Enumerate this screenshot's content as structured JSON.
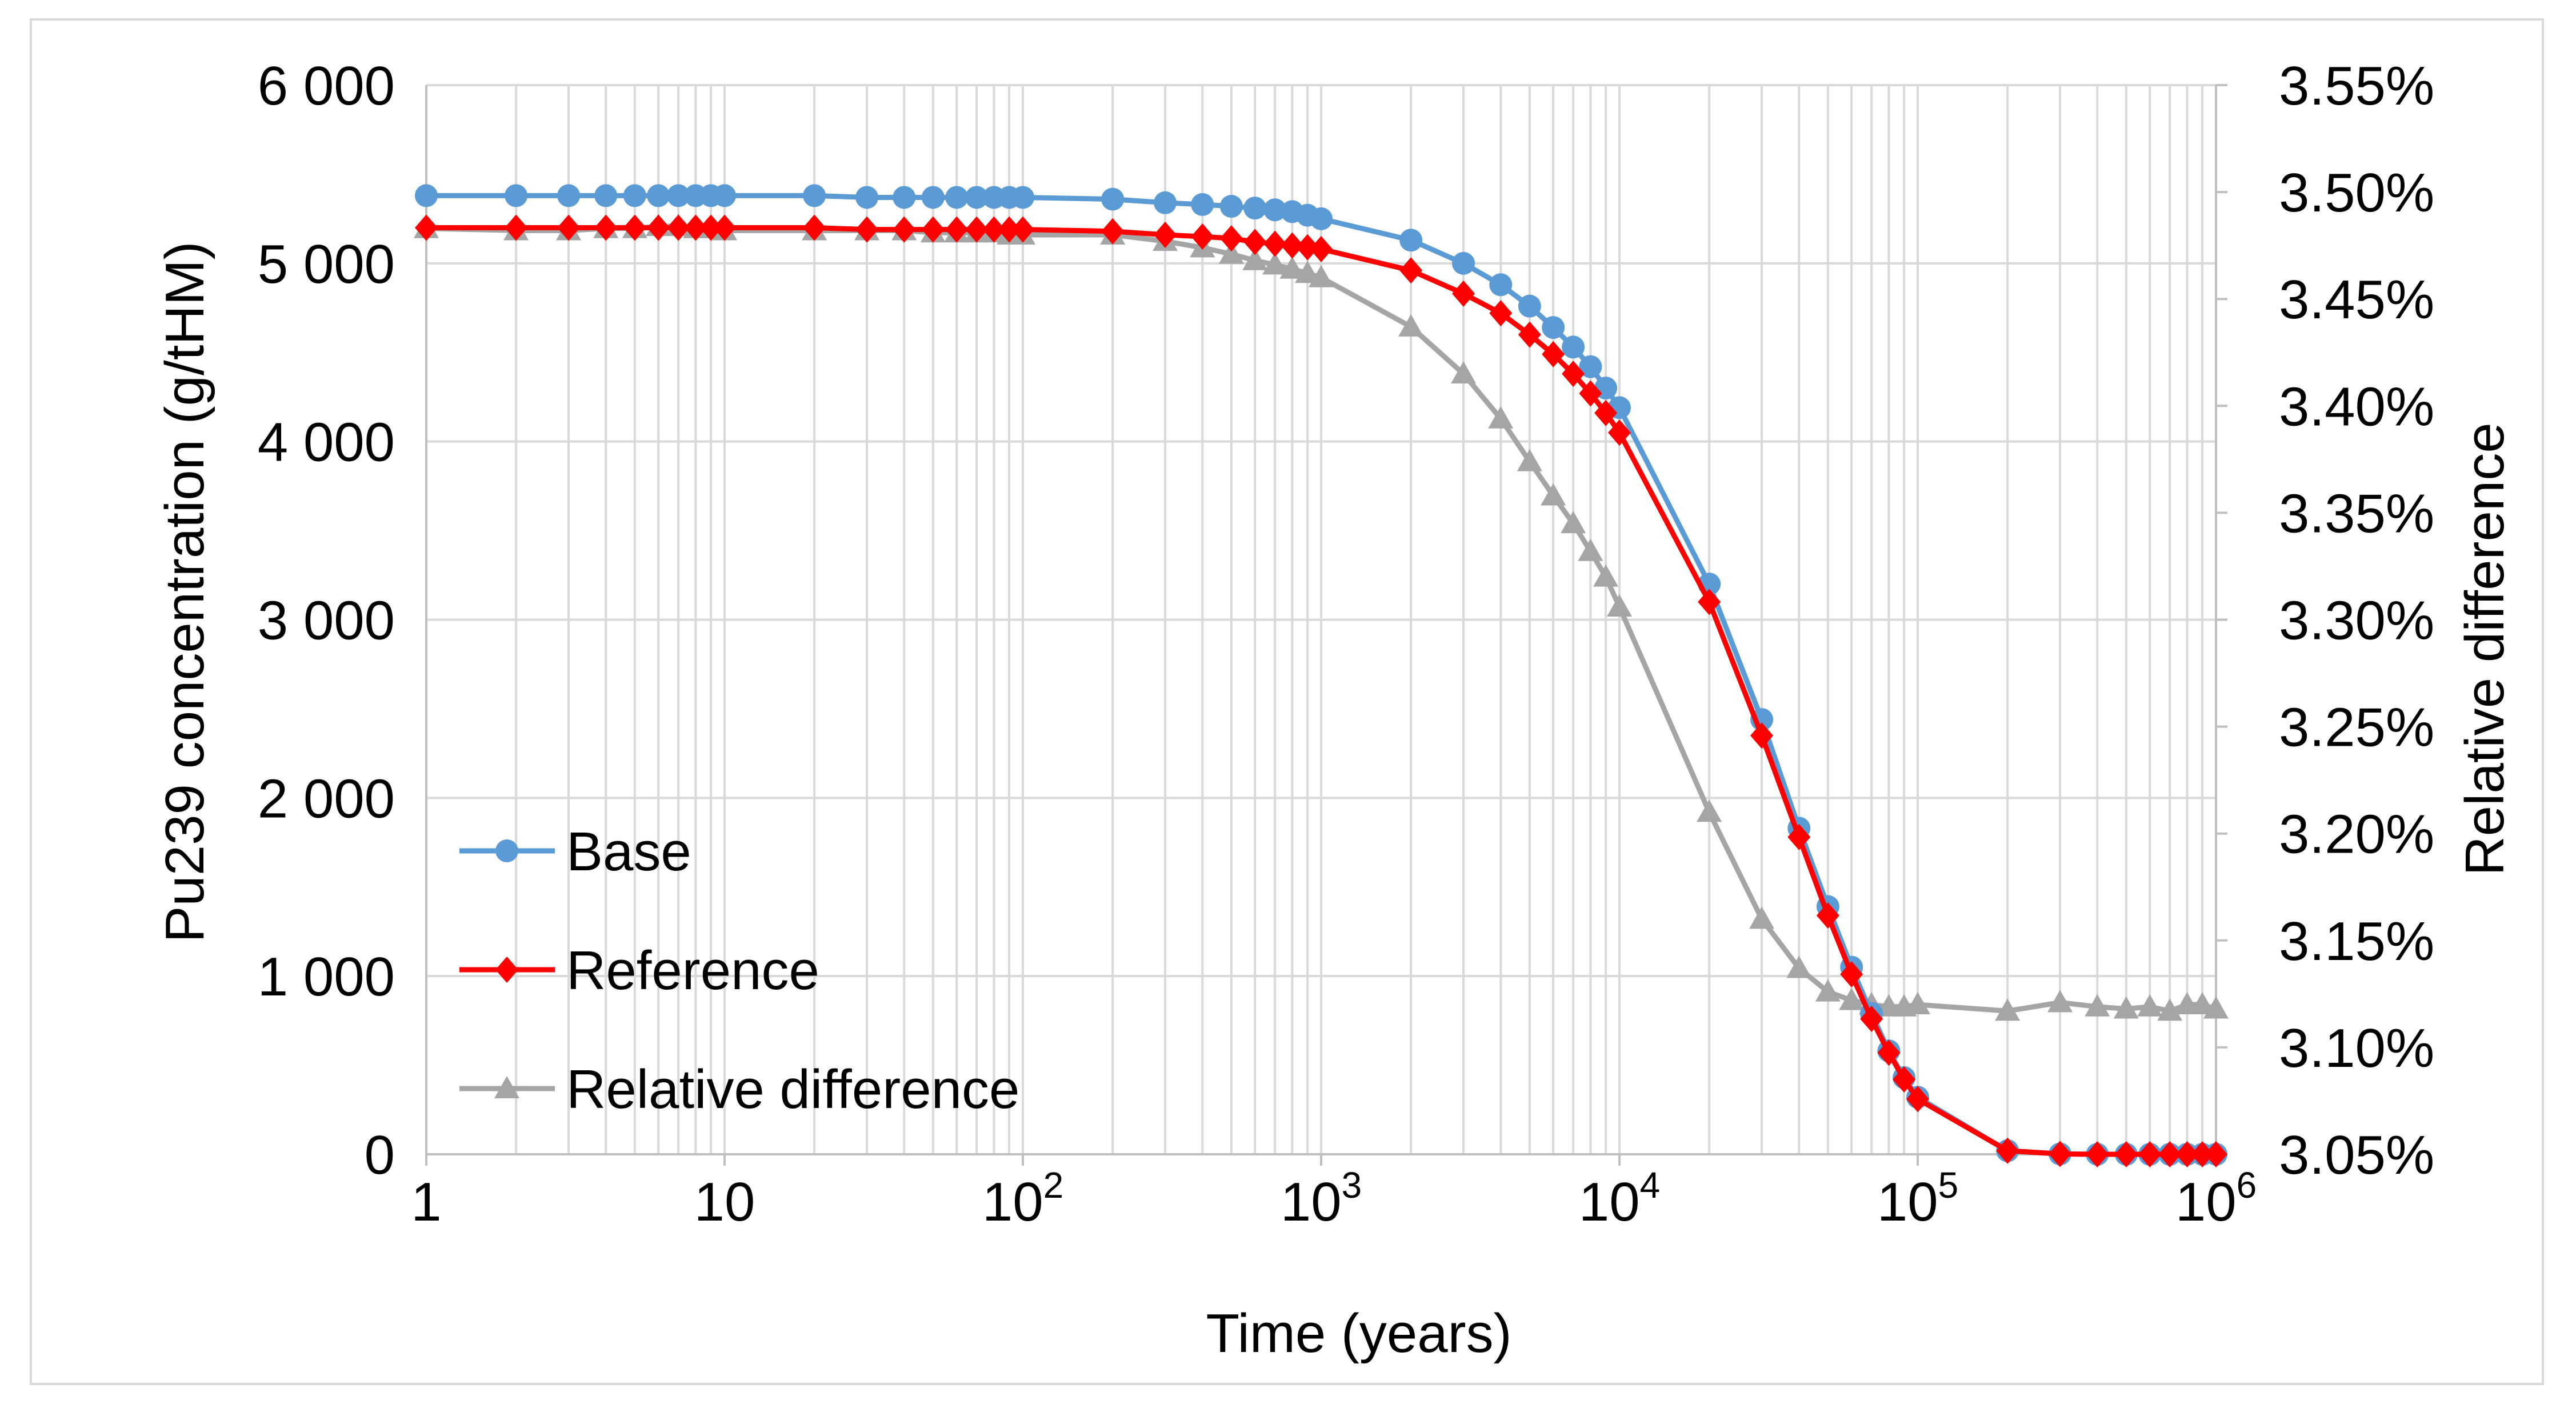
{
  "chart_data": {
    "type": "line",
    "title": "",
    "xlabel": "Time (years)",
    "ylabel": "Pu239 concentration (g/tHM)",
    "y2label": "Relative difference",
    "xscale": "log",
    "xlim": [
      1,
      1000000
    ],
    "ylim": [
      0,
      6000
    ],
    "y2lim": [
      0.0305,
      0.0355
    ],
    "grid": true,
    "legend_position": "bottom-left",
    "x_tick_values": [
      1,
      10,
      100,
      1000,
      10000,
      100000,
      1000000
    ],
    "x_ticks": [
      {
        "base": "1",
        "exp": ""
      },
      {
        "base": "10",
        "exp": ""
      },
      {
        "base": "10",
        "exp": "2"
      },
      {
        "base": "10",
        "exp": "3"
      },
      {
        "base": "10",
        "exp": "4"
      },
      {
        "base": "10",
        "exp": "5"
      },
      {
        "base": "10",
        "exp": "6"
      }
    ],
    "y_tick_values": [
      0,
      1000,
      2000,
      3000,
      4000,
      5000,
      6000
    ],
    "y_ticks": [
      "0",
      "1 000",
      "2 000",
      "3 000",
      "4 000",
      "5 000",
      "6 000"
    ],
    "y2_tick_values": [
      0.0305,
      0.031,
      0.0315,
      0.032,
      0.0325,
      0.033,
      0.0335,
      0.034,
      0.0345,
      0.035,
      0.0355
    ],
    "y2_ticks": [
      "3.05%",
      "3.10%",
      "3.15%",
      "3.20%",
      "3.25%",
      "3.30%",
      "3.35%",
      "3.40%",
      "3.45%",
      "3.50%",
      "3.55%"
    ],
    "x": [
      1,
      2,
      3,
      4,
      5,
      6,
      7,
      8,
      9,
      10,
      20,
      30,
      40,
      50,
      60,
      70,
      80,
      90,
      100,
      200,
      300,
      400,
      500,
      600,
      700,
      800,
      900,
      1000,
      2000,
      3000,
      4000,
      5000,
      6000,
      7000,
      8000,
      9000,
      10000,
      20000,
      30000,
      40000,
      50000,
      60000,
      70000,
      80000,
      90000,
      100000,
      200000,
      300000,
      400000,
      500000,
      600000,
      700000,
      800000,
      900000,
      1000000
    ],
    "series": [
      {
        "name": "Base",
        "axis": "left",
        "color": "#5b9bd5",
        "marker": "circle",
        "values": [
          5380,
          5380,
          5380,
          5380,
          5380,
          5380,
          5380,
          5380,
          5380,
          5380,
          5380,
          5370,
          5370,
          5370,
          5370,
          5370,
          5370,
          5370,
          5370,
          5360,
          5340,
          5330,
          5320,
          5310,
          5300,
          5290,
          5270,
          5250,
          5130,
          5000,
          4880,
          4760,
          4640,
          4530,
          4420,
          4300,
          4190,
          3200,
          2440,
          1830,
          1390,
          1050,
          790,
          580,
          430,
          320,
          20,
          2,
          0,
          0,
          0,
          0,
          0,
          0,
          0
        ]
      },
      {
        "name": "Reference",
        "axis": "left",
        "color": "#ff0000",
        "marker": "diamond",
        "values": [
          5200,
          5200,
          5200,
          5200,
          5200,
          5200,
          5200,
          5200,
          5200,
          5200,
          5200,
          5190,
          5190,
          5190,
          5190,
          5190,
          5190,
          5190,
          5190,
          5180,
          5160,
          5150,
          5140,
          5120,
          5110,
          5100,
          5090,
          5080,
          4960,
          4830,
          4720,
          4600,
          4490,
          4380,
          4270,
          4160,
          4050,
          3100,
          2350,
          1780,
          1340,
          1010,
          760,
          570,
          420,
          310,
          20,
          2,
          0,
          0,
          0,
          0,
          0,
          0,
          0
        ]
      },
      {
        "name": "Relative difference",
        "axis": "right",
        "color": "#a5a5a5",
        "marker": "triangle",
        "values": [
          0.03483,
          0.03482,
          0.03482,
          0.03483,
          0.03483,
          0.03484,
          0.03484,
          0.03483,
          0.03483,
          0.03482,
          0.03482,
          0.03482,
          0.03482,
          0.03481,
          0.03481,
          0.03481,
          0.03481,
          0.0348,
          0.0348,
          0.0348,
          0.03477,
          0.03474,
          0.03471,
          0.03468,
          0.03466,
          0.03464,
          0.03462,
          0.0346,
          0.03437,
          0.03415,
          0.03394,
          0.03374,
          0.03358,
          0.03345,
          0.03332,
          0.0332,
          0.03306,
          0.0321,
          0.0316,
          0.03137,
          0.03126,
          0.03122,
          0.0312,
          0.03119,
          0.03119,
          0.0312,
          0.03117,
          0.03121,
          0.03119,
          0.03118,
          0.03119,
          0.03117,
          0.0312,
          0.0312,
          0.03118
        ]
      }
    ]
  }
}
